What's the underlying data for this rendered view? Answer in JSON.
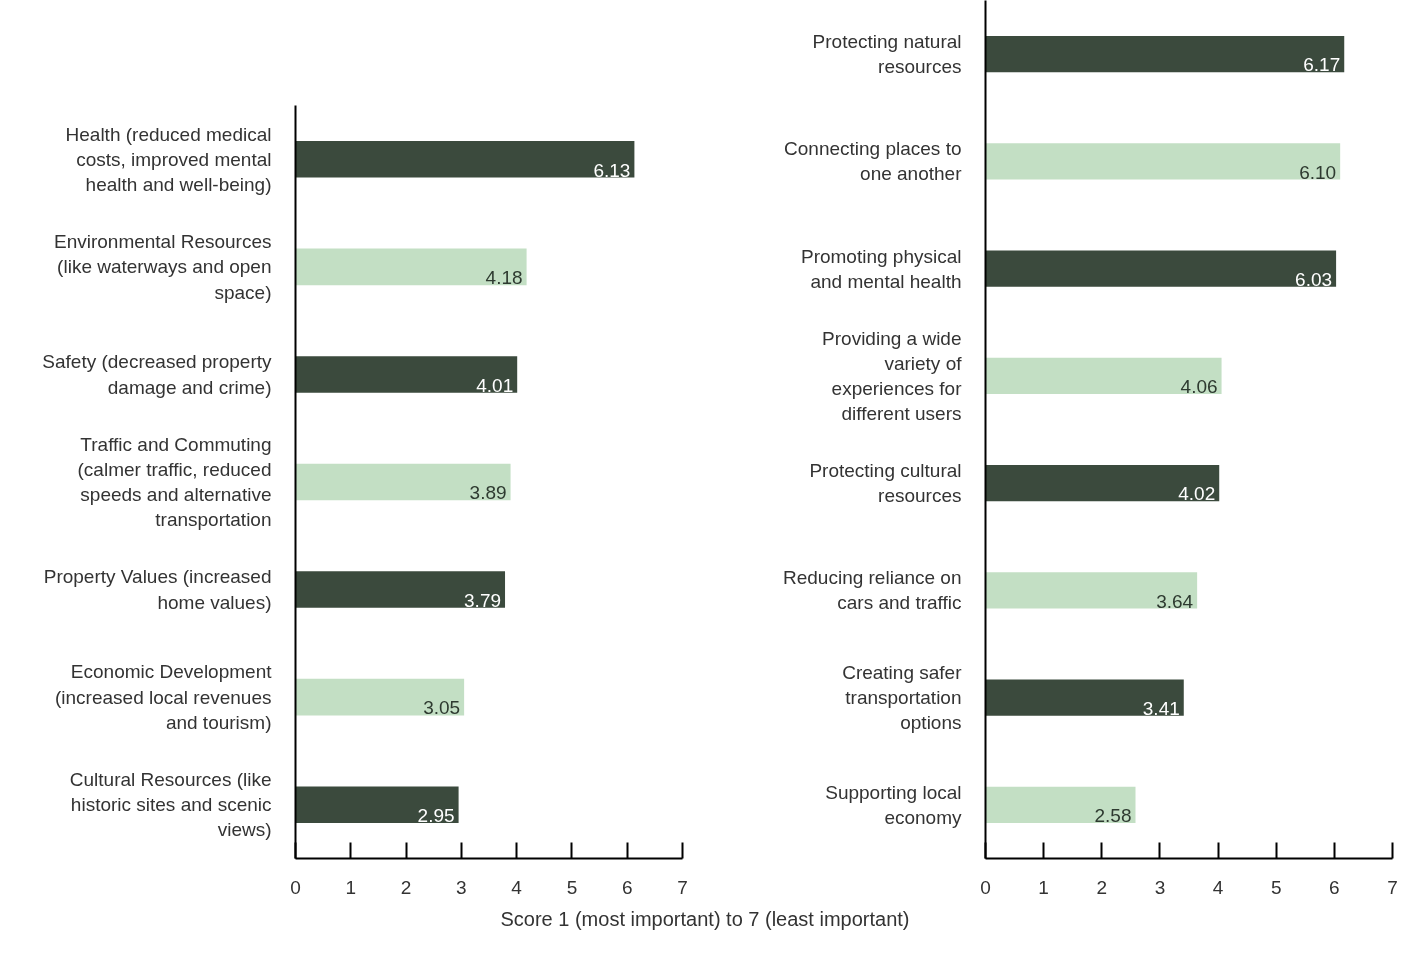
{
  "chart_data": [
    {
      "type": "bar",
      "orientation": "horizontal",
      "xlabel": "Score 1 (most important) to 7 (least important)",
      "categories": [
        "Health (reduced medical costs, improved mental health and well-being)",
        "Environmental Resources (like waterways and open space)",
        "Safety (decreased property damage and crime)",
        "Traffic and Commuting (calmer traffic, reduced speeds and alternative transportation",
        "Property Values (increased home values)",
        "Economic Development (increased local revenues and tourism)",
        "Cultural Resources (like historic sites and scenic views)"
      ],
      "values": [
        6.13,
        4.18,
        4.01,
        3.89,
        3.79,
        3.05,
        2.95
      ],
      "colors": [
        "#3b4a3d",
        "#c3dfc4",
        "#3b4a3d",
        "#c3dfc4",
        "#3b4a3d",
        "#c3dfc4",
        "#3b4a3d"
      ],
      "value_labels": [
        "6.13",
        "4.18",
        "4.01",
        "3.89",
        "3.79",
        "3.05",
        "2.95"
      ],
      "xlim": [
        0,
        7
      ],
      "xticks": [
        0,
        1,
        2,
        3,
        4,
        5,
        6,
        7
      ]
    },
    {
      "type": "bar",
      "orientation": "horizontal",
      "categories": [
        "Protecting natural resources",
        "Connecting places to one another",
        "Promoting physical and mental health",
        "Providing a wide variety of experiences for different users",
        "Protecting cultural resources",
        "Reducing reliance on cars and traffic",
        "Creating safer transportation options",
        "Supporting local economy"
      ],
      "values": [
        6.17,
        6.1,
        6.03,
        4.06,
        4.02,
        3.64,
        3.41,
        2.58
      ],
      "colors": [
        "#3b4a3d",
        "#c3dfc4",
        "#3b4a3d",
        "#c3dfc4",
        "#3b4a3d",
        "#c3dfc4",
        "#3b4a3d",
        "#c3dfc4"
      ],
      "value_labels": [
        "6.17",
        "6.10",
        "6.03",
        "4.06",
        "4.02",
        "3.64",
        "3.41",
        "2.58"
      ],
      "xlim": [
        0,
        7
      ],
      "xticks": [
        0,
        1,
        2,
        3,
        4,
        5,
        6,
        7
      ]
    }
  ]
}
